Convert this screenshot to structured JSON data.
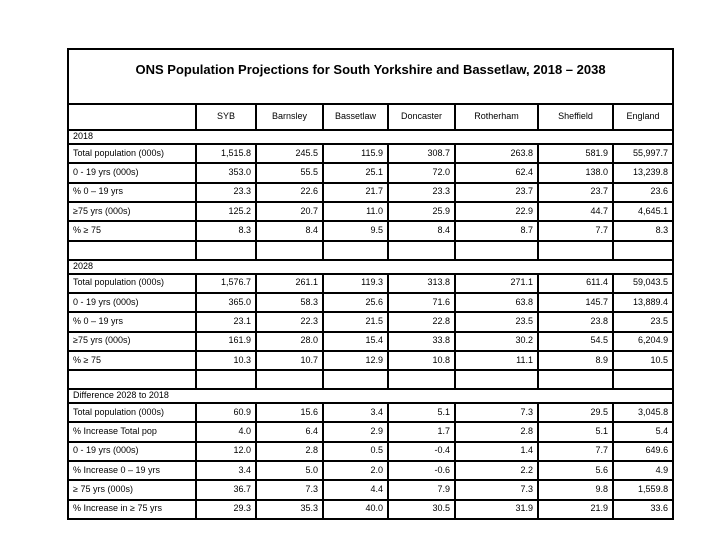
{
  "title": "ONS Population Projections for South Yorkshire and Bassetlaw, 2018 – 2038",
  "columns": [
    "",
    "SYB",
    "Barnsley",
    "Bassetlaw",
    "Doncaster",
    "Rotherham",
    "Sheffield",
    "England"
  ],
  "sections": [
    {
      "name": "2018",
      "blank_row_after": true,
      "rows": [
        {
          "label": "Total population (000s)",
          "values": [
            "1,515.8",
            "245.5",
            "115.9",
            "308.7",
            "263.8",
            "581.9",
            "55,997.7"
          ]
        },
        {
          "label": "0 - 19 yrs (000s)",
          "values": [
            "353.0",
            "55.5",
            "25.1",
            "72.0",
            "62.4",
            "138.0",
            "13,239.8"
          ]
        },
        {
          "label": "% 0 – 19 yrs",
          "values": [
            "23.3",
            "22.6",
            "21.7",
            "23.3",
            "23.7",
            "23.7",
            "23.6"
          ]
        },
        {
          "label": "≥75 yrs (000s)",
          "values": [
            "125.2",
            "20.7",
            "11.0",
            "25.9",
            "22.9",
            "44.7",
            "4,645.1"
          ]
        },
        {
          "label": "% ≥ 75",
          "values": [
            "8.3",
            "8.4",
            "9.5",
            "8.4",
            "8.7",
            "7.7",
            "8.3"
          ]
        }
      ]
    },
    {
      "name": "2028",
      "blank_row_after": true,
      "rows": [
        {
          "label": "Total population (000s)",
          "values": [
            "1,576.7",
            "261.1",
            "119.3",
            "313.8",
            "271.1",
            "611.4",
            "59,043.5"
          ]
        },
        {
          "label": "0 - 19 yrs (000s)",
          "values": [
            "365.0",
            "58.3",
            "25.6",
            "71.6",
            "63.8",
            "145.7",
            "13,889.4"
          ]
        },
        {
          "label": "% 0 – 19 yrs",
          "values": [
            "23.1",
            "22.3",
            "21.5",
            "22.8",
            "23.5",
            "23.8",
            "23.5"
          ]
        },
        {
          "label": "≥75 yrs (000s)",
          "values": [
            "161.9",
            "28.0",
            "15.4",
            "33.8",
            "30.2",
            "54.5",
            "6,204.9"
          ]
        },
        {
          "label": "% ≥ 75",
          "values": [
            "10.3",
            "10.7",
            "12.9",
            "10.8",
            "11.1",
            "8.9",
            "10.5"
          ]
        }
      ]
    },
    {
      "name": "Difference 2028 to 2018",
      "blank_row_after": false,
      "rows": [
        {
          "label": "Total population (000s)",
          "values": [
            "60.9",
            "15.6",
            "3.4",
            "5.1",
            "7.3",
            "29.5",
            "3,045.8"
          ]
        },
        {
          "label": "% Increase Total pop",
          "values": [
            "4.0",
            "6.4",
            "2.9",
            "1.7",
            "2.8",
            "5.1",
            "5.4"
          ]
        },
        {
          "label": "0 - 19 yrs (000s)",
          "values": [
            "12.0",
            "2.8",
            "0.5",
            "-0.4",
            "1.4",
            "7.7",
            "649.6"
          ]
        },
        {
          "label": "% Increase 0 – 19 yrs",
          "values": [
            "3.4",
            "5.0",
            "2.0",
            "-0.6",
            "2.2",
            "5.6",
            "4.9"
          ]
        },
        {
          "label": "≥ 75 yrs (000s)",
          "values": [
            "36.7",
            "7.3",
            "4.4",
            "7.9",
            "7.3",
            "9.8",
            "1,559.8"
          ]
        },
        {
          "label": "% Increase in ≥ 75 yrs",
          "values": [
            "29.3",
            "35.3",
            "40.0",
            "30.5",
            "31.9",
            "21.9",
            "33.6"
          ]
        }
      ]
    }
  ]
}
